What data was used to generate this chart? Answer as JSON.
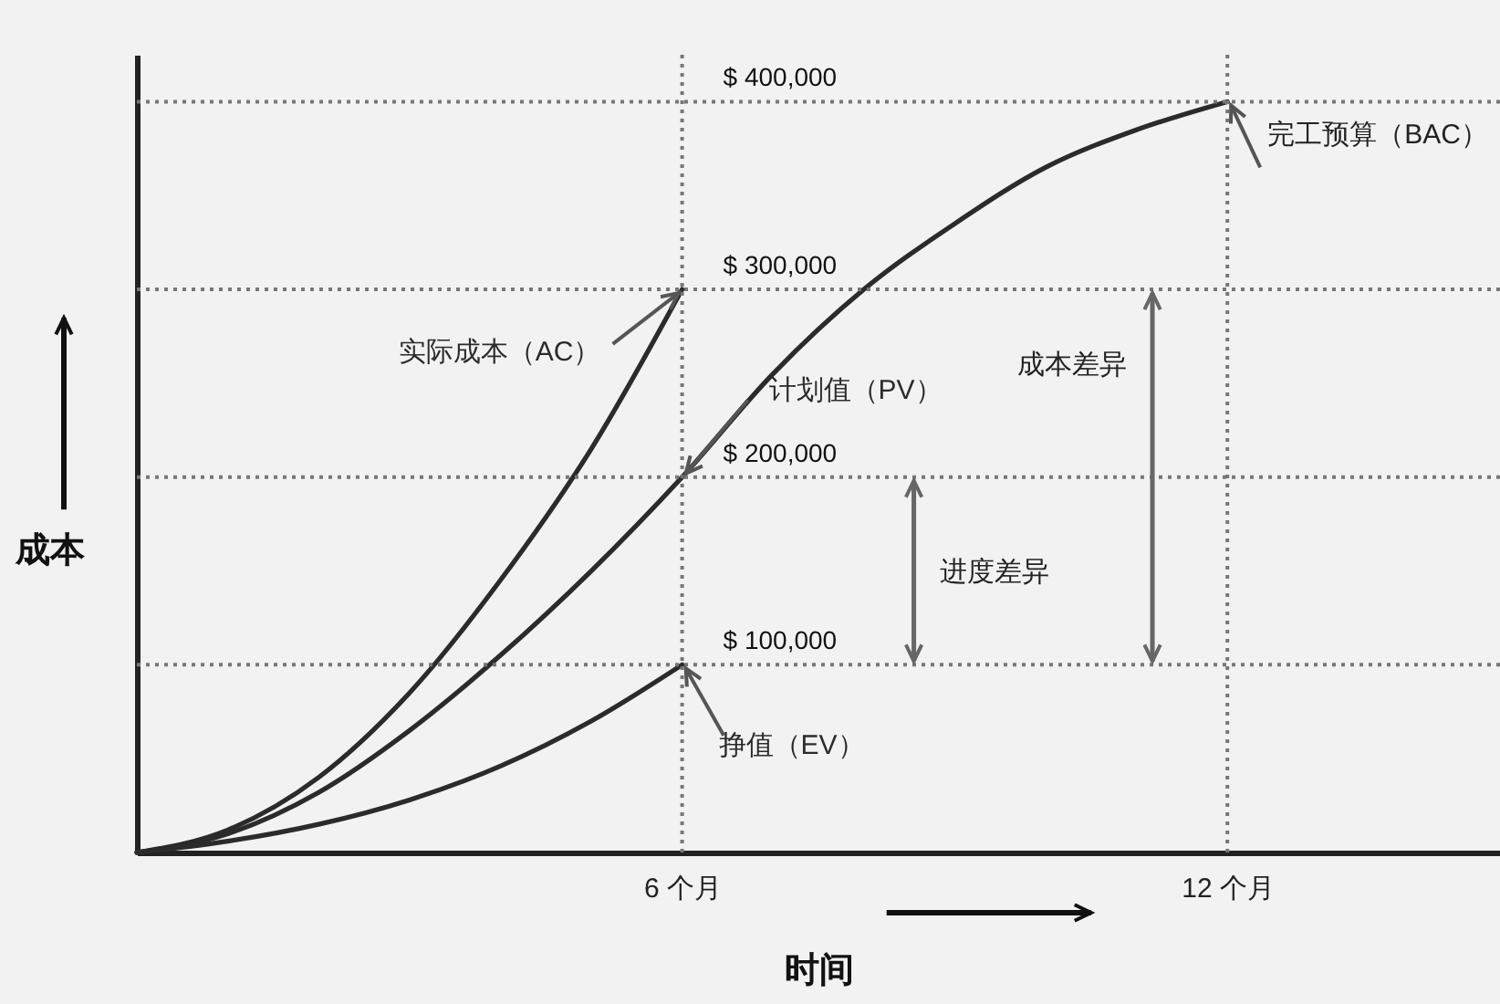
{
  "chart_data": {
    "type": "line",
    "xlabel": "时间",
    "ylabel": "成本",
    "xlim": [
      0,
      15
    ],
    "xticks": [
      {
        "value": 6,
        "label": "6 个月"
      },
      {
        "value": 12,
        "label": "12 个月"
      }
    ],
    "ylim": [
      0,
      425000
    ],
    "yticks": [
      {
        "value": 100000,
        "label": "$ 100,000"
      },
      {
        "value": 200000,
        "label": "$ 200,000"
      },
      {
        "value": 300000,
        "label": "$ 300,000"
      },
      {
        "value": 400000,
        "label": "$ 400,000"
      }
    ],
    "line_style": "solid",
    "series": [
      {
        "name": "实际成本（AC）",
        "color": "#2b2b2b",
        "x": [
          0,
          1,
          2,
          3,
          4,
          5,
          6
        ],
        "values": [
          0,
          12000,
          40000,
          85000,
          145000,
          215000,
          300000
        ]
      },
      {
        "name": "计划值（PV）",
        "color": "#2b2b2b",
        "x": [
          0,
          1,
          2,
          3,
          4,
          5,
          6,
          7,
          8,
          9,
          10,
          11,
          12
        ],
        "values": [
          0,
          10000,
          32000,
          65000,
          105000,
          150000,
          200000,
          255000,
          300000,
          335000,
          365000,
          385000,
          400000
        ]
      },
      {
        "name": "挣值（EV）",
        "color": "#2b2b2b",
        "x": [
          0,
          1,
          2,
          3,
          4,
          5,
          6
        ],
        "values": [
          0,
          6000,
          15000,
          28000,
          46000,
          70000,
          100000
        ]
      }
    ],
    "ref_lines": [
      {
        "axis": "x",
        "value": 6,
        "color": "#777777",
        "line_style": "dotted"
      },
      {
        "axis": "x",
        "value": 12,
        "color": "#777777",
        "line_style": "dotted"
      },
      {
        "axis": "y",
        "value": 400000,
        "color": "#777777",
        "line_style": "dotted"
      },
      {
        "axis": "y",
        "value": 300000,
        "color": "#777777",
        "line_style": "dotted"
      },
      {
        "axis": "y",
        "value": 200000,
        "color": "#777777",
        "line_style": "dotted"
      },
      {
        "axis": "y",
        "value": 100000,
        "color": "#777777",
        "line_style": "dotted"
      }
    ],
    "annotations": [
      {
        "text": "完工预算（BAC）",
        "x": 12,
        "y": 400000
      },
      "成本差异",
      "进度差异"
    ]
  }
}
